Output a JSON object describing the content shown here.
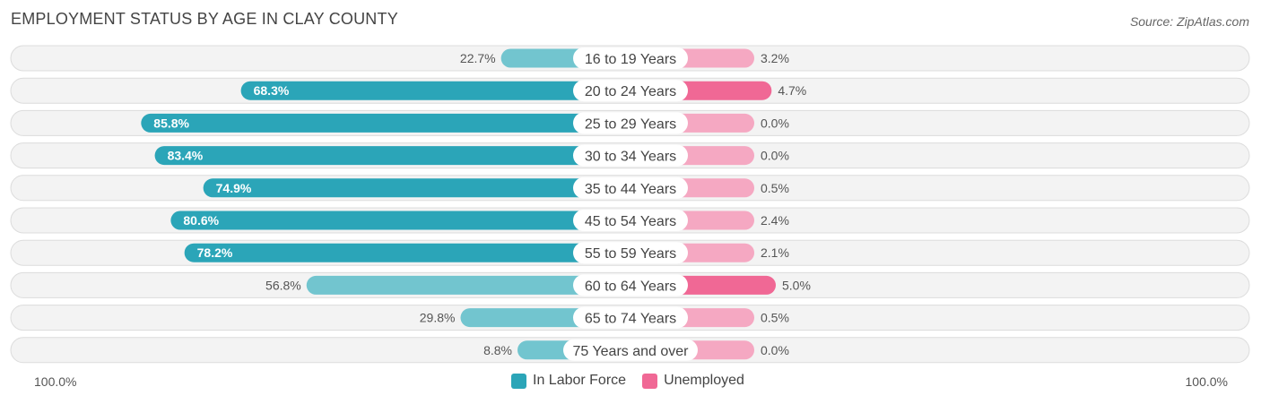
{
  "title": "EMPLOYMENT STATUS BY AGE IN CLAY COUNTY",
  "source": "Source: ZipAtlas.com",
  "axis": {
    "left_label": "100.0%",
    "right_label": "100.0%"
  },
  "legend": [
    {
      "name": "In Labor Force",
      "color": "#2ba5b8"
    },
    {
      "name": "Unemployed",
      "color": "#f06895"
    }
  ],
  "chart_data": {
    "type": "bar",
    "orientation": "diverging-horizontal",
    "title": "EMPLOYMENT STATUS BY AGE IN CLAY COUNTY",
    "categories": [
      "16 to 19 Years",
      "20 to 24 Years",
      "25 to 29 Years",
      "30 to 34 Years",
      "35 to 44 Years",
      "45 to 54 Years",
      "55 to 59 Years",
      "60 to 64 Years",
      "65 to 74 Years",
      "75 Years and over"
    ],
    "series": [
      {
        "name": "In Labor Force",
        "values": [
          22.7,
          68.3,
          85.8,
          83.4,
          74.9,
          80.6,
          78.2,
          56.8,
          29.8,
          8.8
        ],
        "labels": [
          "22.7%",
          "68.3%",
          "85.8%",
          "83.4%",
          "74.9%",
          "80.6%",
          "78.2%",
          "56.8%",
          "29.8%",
          "8.8%"
        ]
      },
      {
        "name": "Unemployed",
        "values": [
          3.2,
          4.7,
          0.0,
          0.0,
          0.5,
          2.4,
          2.1,
          5.0,
          0.5,
          0.0
        ],
        "labels": [
          "3.2%",
          "4.7%",
          "0.0%",
          "0.0%",
          "0.5%",
          "2.4%",
          "2.1%",
          "5.0%",
          "0.5%",
          "0.0%"
        ]
      }
    ],
    "xlim_left": [
      0,
      100
    ],
    "xlim_right": [
      0,
      100
    ],
    "legend_position": "bottom-center"
  }
}
